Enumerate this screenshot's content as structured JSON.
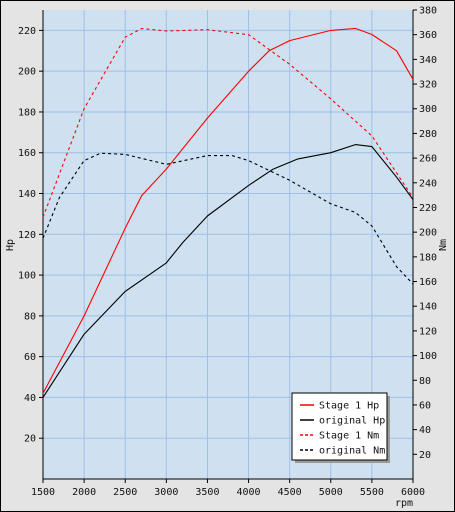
{
  "chart_data": {
    "type": "line",
    "xlabel": "rpm",
    "ylabel_left": "Hp",
    "ylabel_right": "Nm",
    "xlim": [
      1500,
      6000
    ],
    "ylim_left": [
      0,
      230
    ],
    "ylim_right": [
      0,
      380
    ],
    "x_ticks": [
      1500,
      2000,
      2500,
      3000,
      3500,
      4000,
      4500,
      5000,
      5500,
      6000
    ],
    "y_ticks_left": [
      20,
      40,
      60,
      80,
      100,
      120,
      140,
      160,
      180,
      200,
      220
    ],
    "y_ticks_right": [
      20,
      40,
      60,
      80,
      100,
      120,
      140,
      160,
      180,
      200,
      220,
      240,
      260,
      280,
      300,
      320,
      340,
      360,
      380
    ],
    "grid": true,
    "legend_position": "bottom-right",
    "colors": {
      "plot_bg": "#cfe0f0",
      "grid": "#9ec0e8",
      "stage": "#ff0000",
      "original": "#000000"
    },
    "series": [
      {
        "name": "Stage 1 Hp",
        "axis": "left",
        "style": "solid",
        "color": "#ff0000",
        "x": [
          1500,
          2000,
          2500,
          2700,
          3000,
          3500,
          4000,
          4250,
          4500,
          5000,
          5300,
          5500,
          5800,
          6000
        ],
        "y": [
          42,
          80,
          123,
          139,
          152,
          177,
          200,
          210,
          215,
          220,
          221,
          218,
          210,
          196
        ]
      },
      {
        "name": "original Hp",
        "axis": "left",
        "style": "solid",
        "color": "#000000",
        "x": [
          1500,
          2000,
          2500,
          3000,
          3200,
          3500,
          4000,
          4300,
          4600,
          5000,
          5300,
          5500,
          5800,
          6000
        ],
        "y": [
          40,
          71,
          92,
          106,
          116,
          129,
          144,
          152,
          157,
          160,
          164,
          163,
          148,
          137
        ]
      },
      {
        "name": "Stage 1 Nm",
        "axis": "right",
        "style": "dashed",
        "color": "#ff0000",
        "x": [
          1500,
          2000,
          2500,
          2700,
          3000,
          3500,
          4000,
          4500,
          5000,
          5500,
          6000
        ],
        "y": [
          212,
          300,
          358,
          365,
          363,
          364,
          360,
          336,
          308,
          278,
          228
        ]
      },
      {
        "name": "original Nm",
        "axis": "right",
        "style": "dashed",
        "color": "#000000",
        "x": [
          1500,
          1700,
          2000,
          2200,
          2500,
          3000,
          3500,
          3800,
          4000,
          4500,
          5000,
          5300,
          5500,
          5800,
          6000
        ],
        "y": [
          195,
          228,
          258,
          264,
          263,
          255,
          262,
          262,
          258,
          242,
          223,
          216,
          205,
          172,
          158
        ]
      }
    ]
  }
}
